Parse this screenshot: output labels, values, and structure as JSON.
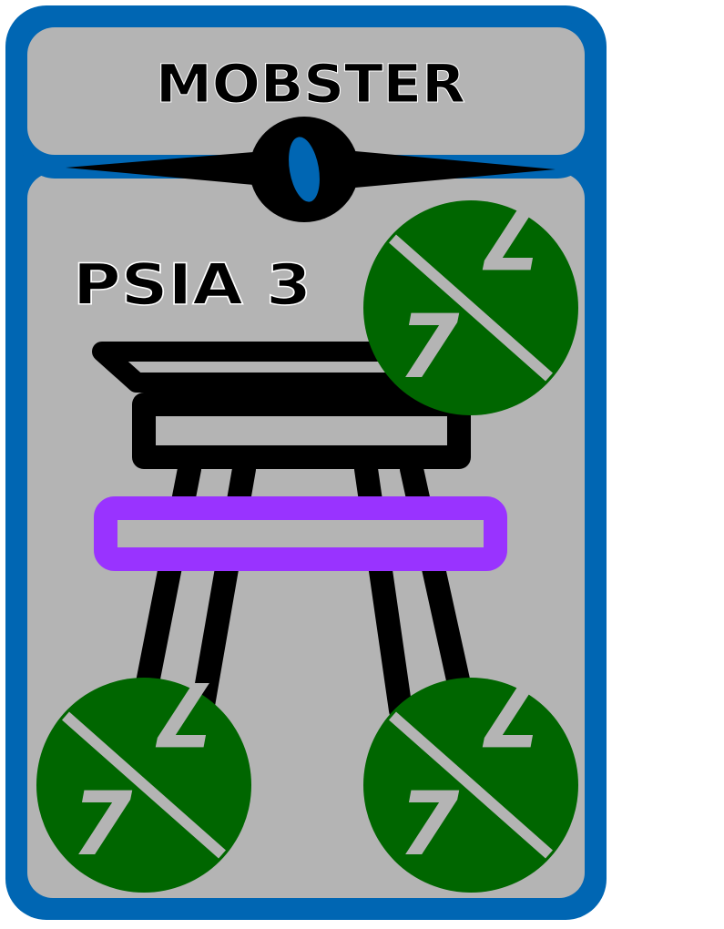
{
  "card": {
    "title": "MOBSTER",
    "cost": "0",
    "name": "PSIA 3",
    "colors": {
      "frame": "#0066b3",
      "panel": "#b4b4b4",
      "ink": "#000000",
      "stat": "#006600",
      "digit": "#b4b4b4",
      "accent": "#9933ff"
    }
  },
  "stats": [
    {
      "id": "top-right",
      "left": "7",
      "right": "7"
    },
    {
      "id": "bottom-left",
      "left": "7",
      "right": "7"
    },
    {
      "id": "bottom-right",
      "left": "7",
      "right": "7"
    }
  ]
}
